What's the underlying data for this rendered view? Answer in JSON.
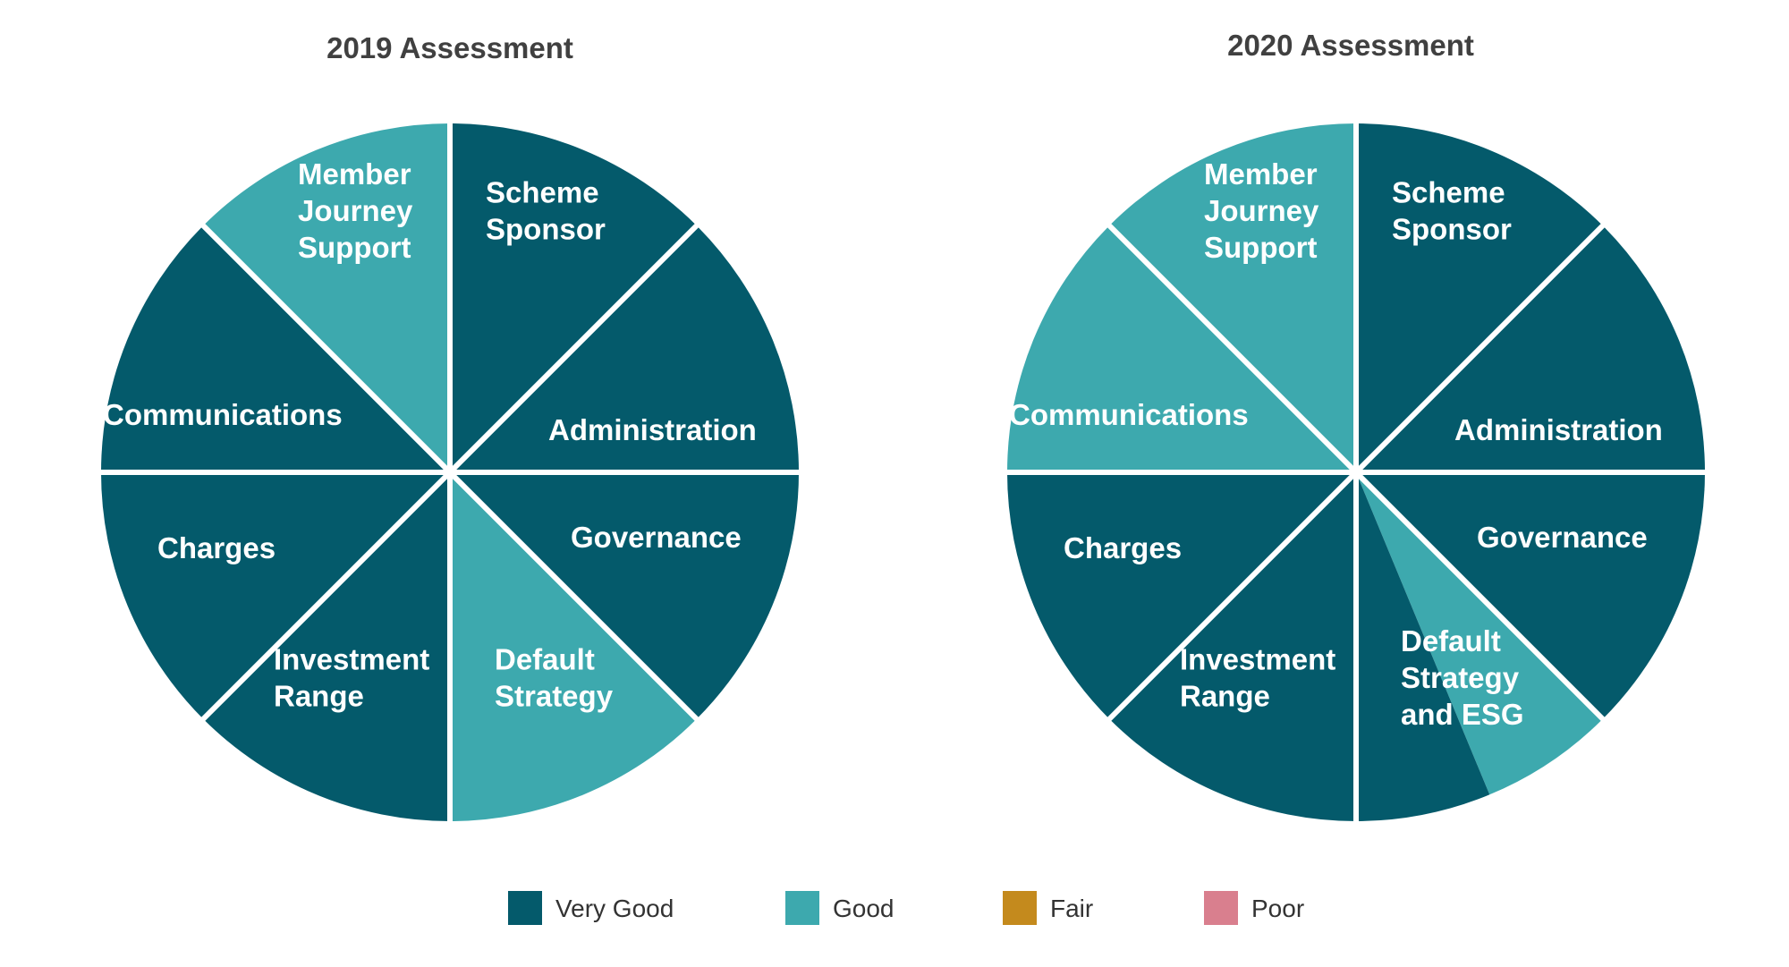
{
  "colors": {
    "Very Good": "#045A6B",
    "Good": "#3DA9AE",
    "Fair": "#C48A1D",
    "Poor": "#D97F8E",
    "separator": "#ffffff"
  },
  "legend": [
    {
      "label": "Very Good",
      "rating": "Very Good"
    },
    {
      "label": "Good",
      "rating": "Good"
    },
    {
      "label": "Fair",
      "rating": "Fair"
    },
    {
      "label": "Poor",
      "rating": "Poor"
    }
  ],
  "chart_data": [
    {
      "type": "pie",
      "title": "2019 Assessment",
      "slice_share": 0.125,
      "start": "top, clockwise",
      "slices": [
        {
          "name": "Scheme Sponsor",
          "lines": [
            "Scheme",
            "Sponsor"
          ],
          "rating": "Very Good"
        },
        {
          "name": "Administration",
          "lines": [
            "Administration"
          ],
          "rating": "Very Good"
        },
        {
          "name": "Governance",
          "lines": [
            "Governance"
          ],
          "rating": "Very Good"
        },
        {
          "name": "Default Strategy",
          "lines": [
            "Default",
            "Strategy"
          ],
          "rating": "Good"
        },
        {
          "name": "Investment Range",
          "lines": [
            "Investment",
            "Range"
          ],
          "rating": "Very Good"
        },
        {
          "name": "Charges",
          "lines": [
            "Charges"
          ],
          "rating": "Very Good"
        },
        {
          "name": "Communications",
          "lines": [
            "Communications"
          ],
          "rating": "Very Good"
        },
        {
          "name": "Member Journey Support",
          "lines": [
            "Member",
            "Journey",
            "Support"
          ],
          "rating": "Good"
        }
      ]
    },
    {
      "type": "pie",
      "title": "2020 Assessment",
      "slice_share": 0.125,
      "start": "top, clockwise",
      "slices": [
        {
          "name": "Scheme Sponsor",
          "lines": [
            "Scheme",
            "Sponsor"
          ],
          "rating": "Very Good"
        },
        {
          "name": "Administration",
          "lines": [
            "Administration"
          ],
          "rating": "Very Good"
        },
        {
          "name": "Governance",
          "lines": [
            "Governance"
          ],
          "rating": "Very Good"
        },
        {
          "name": "Default Strategy and ESG",
          "lines": [
            "Default",
            "Strategy",
            "and ESG"
          ],
          "rating": "Good",
          "split": {
            "rating": "Very Good",
            "share": 0.5
          }
        },
        {
          "name": "Investment Range",
          "lines": [
            "Investment",
            "Range"
          ],
          "rating": "Very Good"
        },
        {
          "name": "Charges",
          "lines": [
            "Charges"
          ],
          "rating": "Very Good"
        },
        {
          "name": "Communications",
          "lines": [
            "Communications"
          ],
          "rating": "Good"
        },
        {
          "name": "Member Journey Support",
          "lines": [
            "Member",
            "Journey",
            "Support"
          ],
          "rating": "Good"
        }
      ]
    }
  ]
}
